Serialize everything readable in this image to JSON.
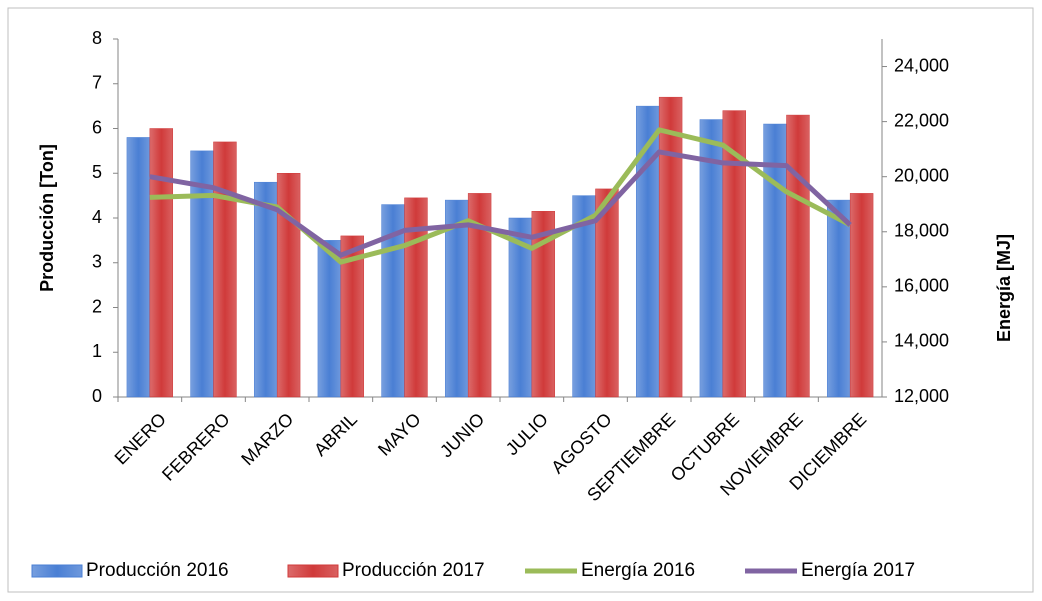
{
  "chart_data": {
    "type": "bar",
    "categories": [
      "ENERO",
      "FEBRERO",
      "MARZO",
      "ABRIL",
      "MAYO",
      "JUNIO",
      "JULIO",
      "AGOSTO",
      "SEPTIEMBRE",
      "OCTUBRE",
      "NOVIEMBRE",
      "DICIEMBRE"
    ],
    "y_label": "Producción [Ton]",
    "y2_label": "Energía [MJ]",
    "ylim": [
      0,
      8
    ],
    "yticks": [
      0,
      1,
      2,
      3,
      4,
      5,
      6,
      7,
      8
    ],
    "y2lim": [
      12000,
      25000
    ],
    "y2ticks": [
      {
        "value": 12000,
        "label": "12,000"
      },
      {
        "value": 14000,
        "label": "14,000"
      },
      {
        "value": 16000,
        "label": "16,000"
      },
      {
        "value": 18000,
        "label": "18,000"
      },
      {
        "value": 20000,
        "label": "20,000"
      },
      {
        "value": 22000,
        "label": "22,000"
      },
      {
        "value": 24000,
        "label": "24,000"
      }
    ],
    "legend": "bottom",
    "series": [
      {
        "name": "Producción 2016",
        "type": "bar",
        "color": "#4a7fd4",
        "values": [
          5.8,
          5.5,
          4.8,
          3.5,
          4.3,
          4.4,
          4.0,
          4.5,
          6.5,
          6.2,
          6.1,
          4.4
        ]
      },
      {
        "name": "Producción 2017",
        "type": "bar",
        "color": "#d03a3a",
        "values": [
          6.0,
          5.7,
          5.0,
          3.6,
          4.45,
          4.55,
          4.15,
          4.65,
          6.7,
          6.4,
          6.3,
          4.55
        ]
      },
      {
        "name": "Energía 2016",
        "type": "line",
        "axis": "y2",
        "color": "#9bbb59",
        "values": [
          19250,
          19320,
          18900,
          16900,
          17500,
          18400,
          17400,
          18600,
          21700,
          21150,
          19450,
          18250
        ]
      },
      {
        "name": "Energía 2017",
        "type": "line",
        "axis": "y2",
        "color": "#8064a2",
        "values": [
          20000,
          19600,
          18800,
          17150,
          18050,
          18250,
          17800,
          18400,
          20900,
          20500,
          20400,
          18250
        ]
      }
    ]
  }
}
